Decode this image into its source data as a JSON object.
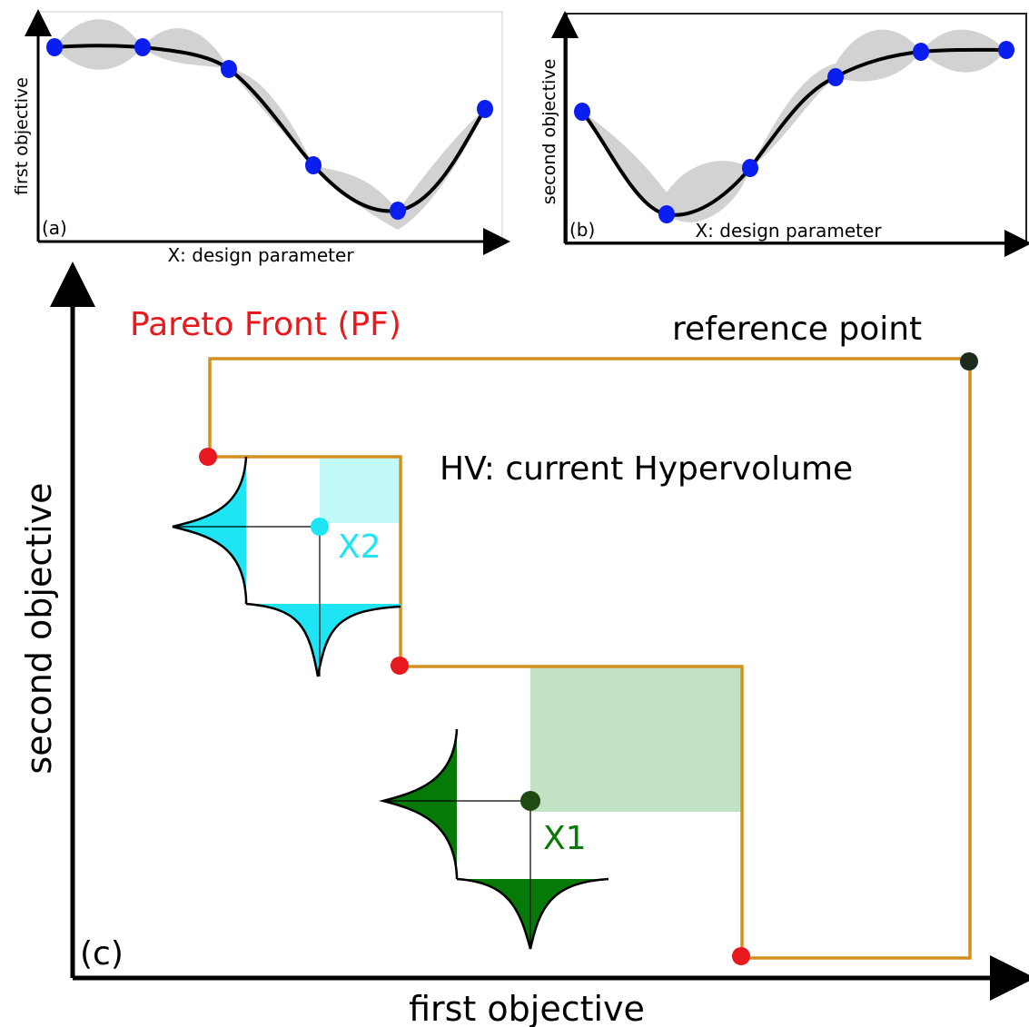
{
  "panel_a": {
    "tag": "(a)",
    "xlabel": "X: design parameter",
    "ylabel": "first objective"
  },
  "panel_b": {
    "tag": "(b)",
    "xlabel": "X: design parameter",
    "ylabel": "second objective"
  },
  "panel_c": {
    "tag": "(c)",
    "xlabel": "first objective",
    "ylabel": "second objective",
    "pareto_label": "Pareto Front (PF)",
    "reference_label": "reference  point",
    "hv_label": "HV: current Hypervolume",
    "x1_label": "X1",
    "x2_label": "X2"
  },
  "colors": {
    "pareto": "#e8191e",
    "front_line": "#d4901e",
    "cyan": "#1ee4f4",
    "cyan_light": "#c2fafc",
    "green": "#067a06",
    "green_light": "#c3e1c3",
    "point_blue": "#0b1ef0",
    "band_gray": "#d2d2d2",
    "ref_point": "#1e2a1e",
    "x1_point": "#1f4a12"
  }
}
